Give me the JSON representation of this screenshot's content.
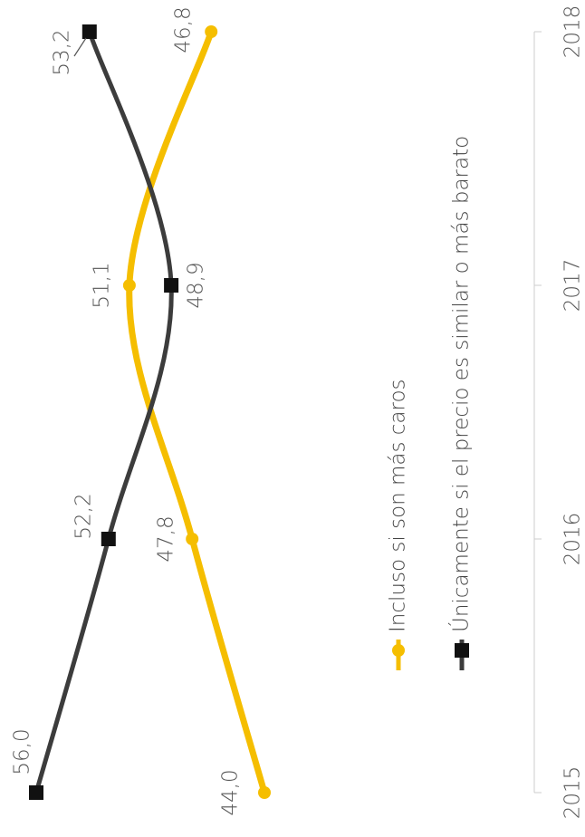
{
  "chart_data": {
    "type": "line",
    "x": [
      2015,
      2016,
      2017,
      2018
    ],
    "xlim": [
      2015,
      2018
    ],
    "xticks": [
      2015,
      2016,
      2017,
      2018
    ],
    "series": [
      {
        "name": "Incluso si son más caros",
        "color": "#f5be00",
        "marker": "circle",
        "values": [
          44.0,
          47.8,
          51.1,
          46.8
        ],
        "value_labels": [
          "44,0",
          "47,8",
          "51,1",
          "46,8"
        ]
      },
      {
        "name": "Únicamente si el precio es similar o más barato",
        "color": "#3c3c3c",
        "marker": "square",
        "values": [
          56.0,
          52.2,
          48.9,
          53.2
        ],
        "value_labels": [
          "56,0",
          "52,2",
          "48,9",
          "53,2"
        ]
      }
    ],
    "legend": "center"
  }
}
